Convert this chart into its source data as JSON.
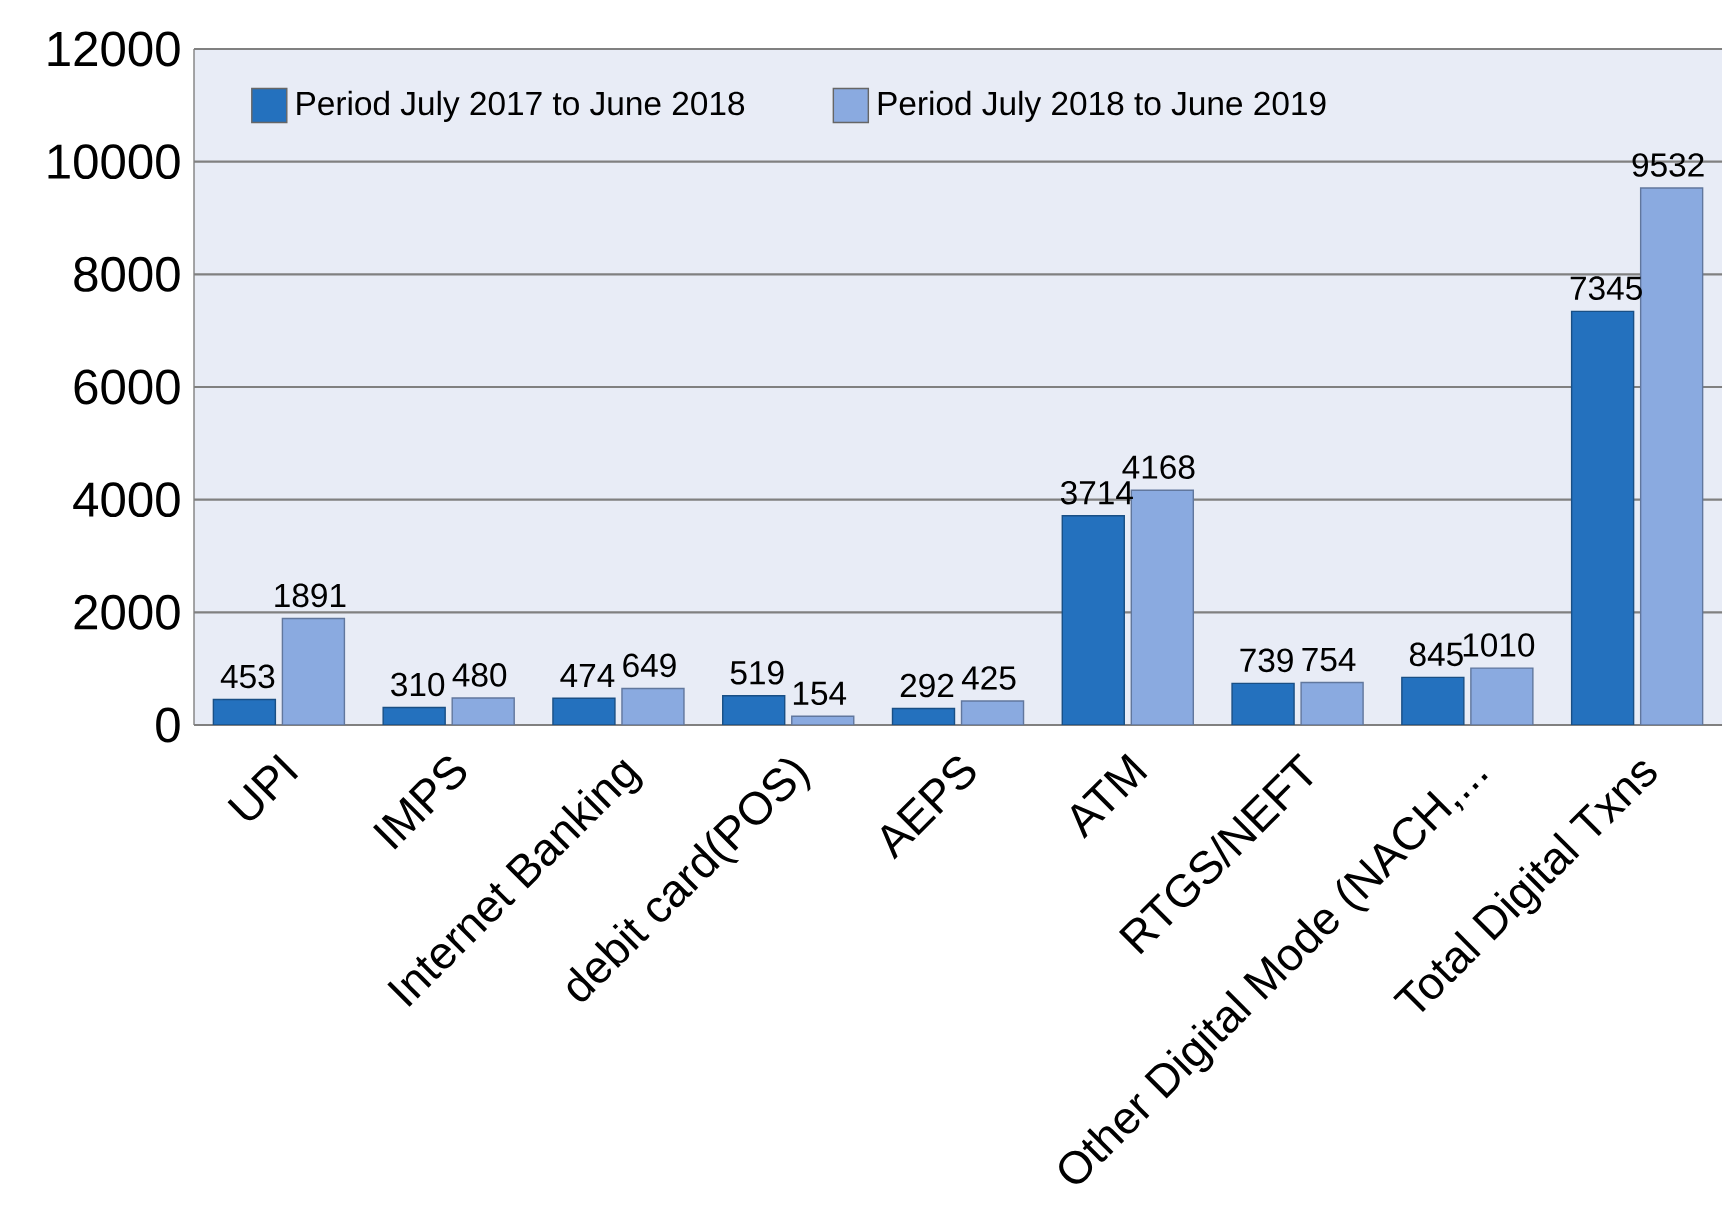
{
  "chart_data": {
    "type": "bar",
    "categories": [
      "UPI",
      "IMPS",
      "Internet Banking",
      "debit card(POS)",
      "AEPS",
      "ATM",
      "RTGS/NEFT",
      "Other Digital Mode (NACH,...",
      "Total Digital Txns"
    ],
    "series": [
      {
        "name": "Period July 2017 to June 2018",
        "color": "#2471be",
        "values": [
          453,
          310,
          474,
          519,
          292,
          3714,
          739,
          845,
          7345
        ]
      },
      {
        "name": "Period July 2018 to June 2019",
        "color": "#8aaae0",
        "values": [
          1891,
          480,
          649,
          154,
          425,
          4168,
          754,
          1010,
          9532
        ]
      }
    ],
    "ylim": [
      0,
      12000
    ],
    "yticks": [
      0,
      2000,
      4000,
      6000,
      8000,
      10000,
      12000
    ],
    "grid": "y",
    "legend": "top left",
    "data_labels": true
  }
}
